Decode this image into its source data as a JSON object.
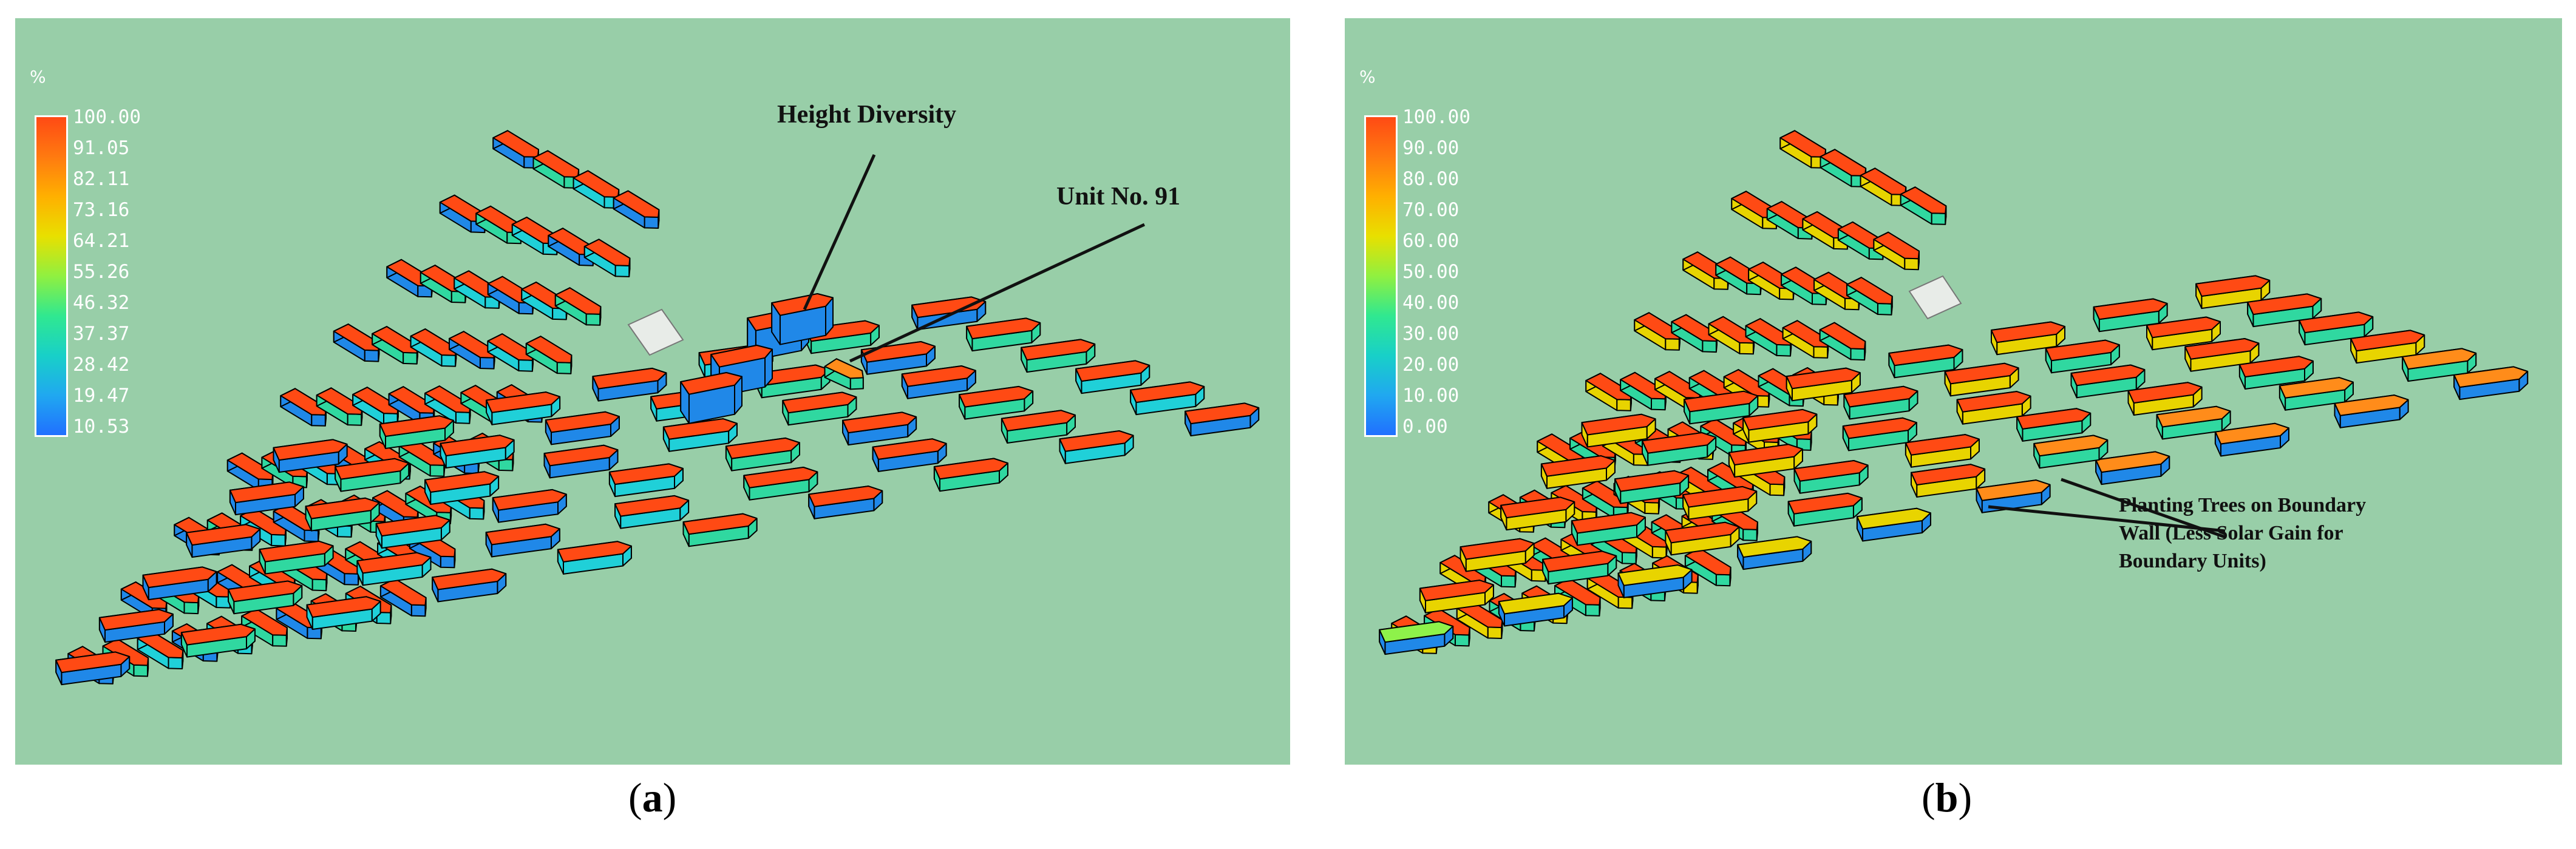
{
  "panels": [
    {
      "id": "a",
      "legend": {
        "unit": "%",
        "ticks": [
          "100.00",
          "91.05",
          "82.11",
          "73.16",
          "64.21",
          "55.26",
          "46.32",
          "37.37",
          "28.42",
          "19.47",
          "10.53"
        ],
        "gradient_colors": [
          "#ff4a14",
          "#ff7a10",
          "#ffb000",
          "#e8e000",
          "#90f040",
          "#30e890",
          "#18d0c8",
          "#20a8f0",
          "#2070ff"
        ]
      },
      "annotations": {
        "height_diversity": "Height Diversity",
        "unit_no": "Unit No. 91"
      },
      "caption": {
        "open": "(",
        "letter": "a",
        "close": ")"
      }
    },
    {
      "id": "b",
      "legend": {
        "unit": "%",
        "ticks": [
          "100.00",
          "90.00",
          "80.00",
          "70.00",
          "60.00",
          "50.00",
          "40.00",
          "30.00",
          "20.00",
          "10.00",
          "0.00"
        ],
        "gradient_colors": [
          "#ff4a14",
          "#ff7a10",
          "#ffb000",
          "#e8e000",
          "#90f040",
          "#30e890",
          "#18d0c8",
          "#20a8f0",
          "#2070ff"
        ]
      },
      "annotations": {
        "boundary_note": "Planting Trees on Boundary\nWall (Less Solar Gain for\nBoundary Units)"
      },
      "caption": {
        "open": "(",
        "letter": "b",
        "close": ")"
      }
    }
  ],
  "colors": {
    "background": "#98cea8",
    "roof_high": "#ff4a14",
    "roof_orange": "#ff8c1a",
    "roof_yellow": "#e8d400",
    "roof_green": "#8ef24a",
    "wall_green": "#30d8a0",
    "wall_cyan": "#20d0d8",
    "wall_blue": "#2088e8",
    "plot": "#e8ece8"
  }
}
